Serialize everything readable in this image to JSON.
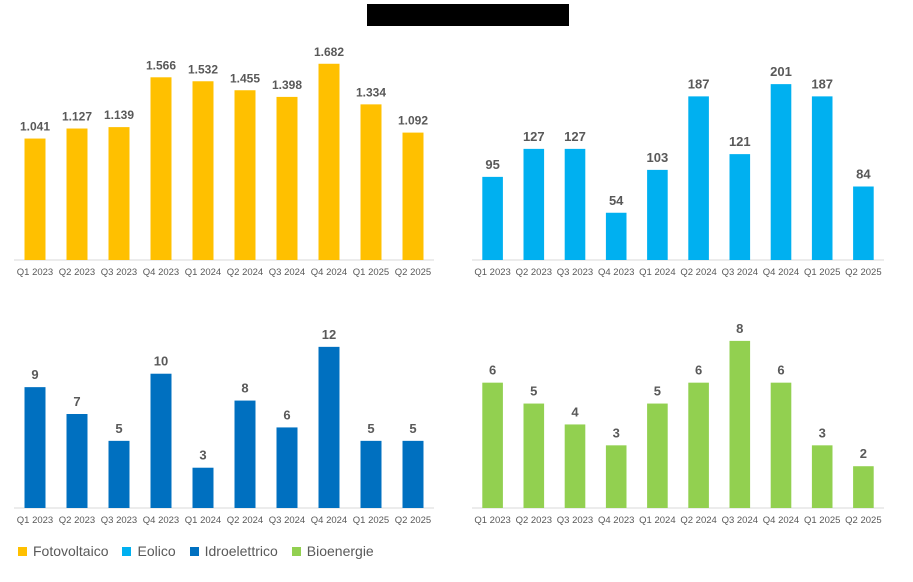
{
  "chart_data": [
    {
      "type": "bar",
      "series_name": "Fotovoltaico",
      "color": "#FFC000",
      "categories": [
        "Q1 2023",
        "Q2 2023",
        "Q3 2023",
        "Q4 2023",
        "Q1 2024",
        "Q2 2024",
        "Q3 2024",
        "Q4 2024",
        "Q1 2025",
        "Q2 2025"
      ],
      "values": [
        1041,
        1127,
        1139,
        1566,
        1532,
        1455,
        1398,
        1682,
        1334,
        1092
      ],
      "labels": [
        "1.041",
        "1.127",
        "1.139",
        "1.566",
        "1.532",
        "1.455",
        "1.398",
        "1.682",
        "1.334",
        "1.092"
      ],
      "ylim": [
        0,
        1800
      ]
    },
    {
      "type": "bar",
      "series_name": "Eolico",
      "color": "#00B0F0",
      "categories": [
        "Q1 2023",
        "Q2 2023",
        "Q3 2023",
        "Q4 2023",
        "Q1 2024",
        "Q2 2024",
        "Q3 2024",
        "Q4 2024",
        "Q1 2025",
        "Q2 2025"
      ],
      "values": [
        95,
        127,
        127,
        54,
        103,
        187,
        121,
        201,
        187,
        84
      ],
      "labels": [
        "95",
        "127",
        "127",
        "54",
        "103",
        "187",
        "121",
        "201",
        "187",
        "84"
      ],
      "ylim": [
        0,
        240
      ]
    },
    {
      "type": "bar",
      "series_name": "Idroelettrico",
      "color": "#0070C0",
      "categories": [
        "Q1 2023",
        "Q2 2023",
        "Q3 2023",
        "Q4 2023",
        "Q1 2024",
        "Q2 2024",
        "Q3 2024",
        "Q4 2024",
        "Q1 2025",
        "Q2 2025"
      ],
      "values": [
        9,
        7,
        5,
        10,
        3,
        8,
        6,
        12,
        5,
        5
      ],
      "labels": [
        "9",
        "7",
        "5",
        "10",
        "3",
        "8",
        "6",
        "12",
        "5",
        "5"
      ],
      "ylim": [
        0,
        14
      ]
    },
    {
      "type": "bar",
      "series_name": "Bioenergie",
      "color": "#92D050",
      "categories": [
        "Q1 2023",
        "Q2 2023",
        "Q3 2023",
        "Q4 2023",
        "Q1 2024",
        "Q2 2024",
        "Q3 2024",
        "Q4 2024",
        "Q1 2025",
        "Q2 2025"
      ],
      "values": [
        6,
        5,
        4,
        3,
        5,
        6,
        8,
        6,
        3,
        2
      ],
      "labels": [
        "6",
        "5",
        "4",
        "3",
        "5",
        "6",
        "8",
        "6",
        "3",
        "2"
      ],
      "ylim": [
        0,
        9
      ]
    }
  ],
  "legend": [
    {
      "label": "Fotovoltaico",
      "color": "#FFC000"
    },
    {
      "label": "Eolico",
      "color": "#00B0F0"
    },
    {
      "label": "Idroelettrico",
      "color": "#0070C0"
    },
    {
      "label": "Bioenergie",
      "color": "#92D050"
    }
  ]
}
